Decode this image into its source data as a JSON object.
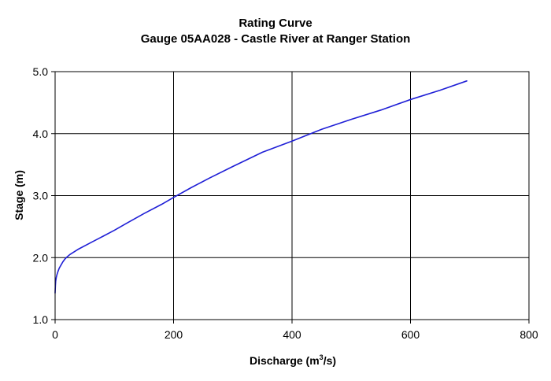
{
  "chart_data": {
    "type": "line",
    "title": "Rating Curve",
    "subtitle": "Gauge 05AA028 - Castle River at Ranger Station",
    "xlabel_main": "Discharge (m",
    "xlabel_sup": "3",
    "xlabel_tail": "/s)",
    "ylabel": "Stage (m)",
    "xlim": [
      0,
      800
    ],
    "ylim": [
      1.0,
      5.0
    ],
    "x_ticks": [
      0,
      200,
      400,
      600,
      800
    ],
    "y_ticks": [
      1.0,
      2.0,
      3.0,
      4.0,
      5.0
    ],
    "x_tick_labels": [
      "0",
      "200",
      "400",
      "600",
      "800"
    ],
    "y_tick_labels": [
      "1.0",
      "2.0",
      "3.0",
      "4.0",
      "5.0"
    ],
    "grid": true,
    "legend": "none",
    "line_color": "#1f1fd6",
    "series": [
      {
        "x": [
          0,
          0.5,
          1,
          2,
          3,
          5,
          7,
          10,
          13,
          16,
          20,
          25,
          30,
          35,
          40,
          60,
          80,
          100,
          120,
          150,
          180,
          200,
          230,
          260,
          300,
          350,
          400,
          450,
          500,
          550,
          600,
          650,
          695
        ],
        "y": [
          1.43,
          1.55,
          1.62,
          1.68,
          1.72,
          1.78,
          1.83,
          1.88,
          1.93,
          1.97,
          2.01,
          2.05,
          2.08,
          2.11,
          2.14,
          2.24,
          2.34,
          2.44,
          2.55,
          2.71,
          2.86,
          2.97,
          3.13,
          3.28,
          3.47,
          3.7,
          3.88,
          4.07,
          4.23,
          4.38,
          4.55,
          4.7,
          4.85
        ]
      }
    ]
  }
}
